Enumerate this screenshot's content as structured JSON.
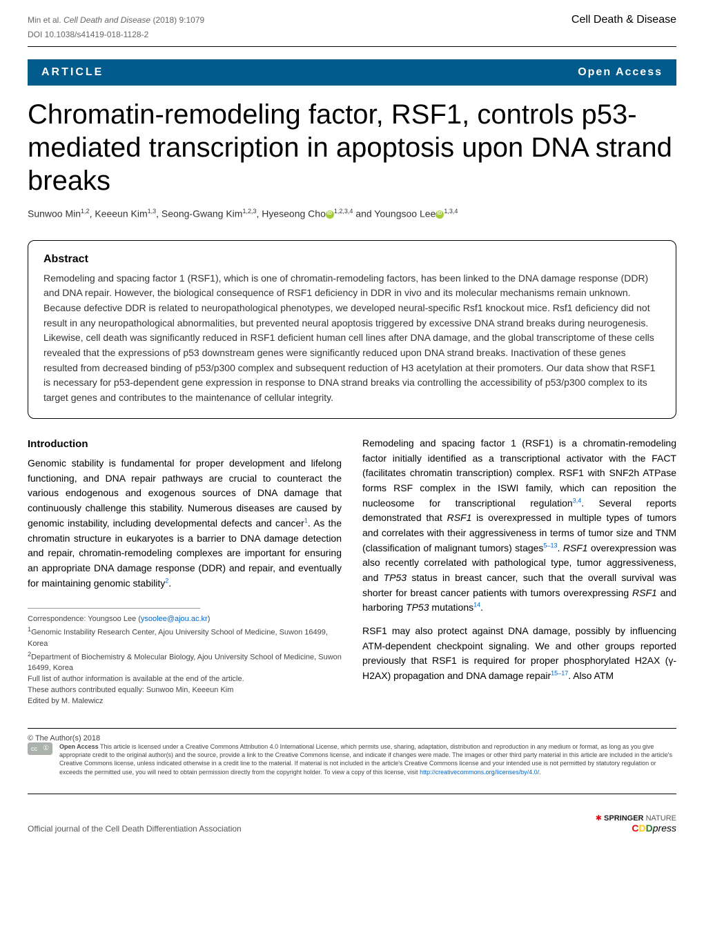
{
  "header": {
    "citation_prefix": "Min et al. ",
    "journal_italic": "Cell Death and Disease",
    "citation_suffix": "    (2018) 9:1079",
    "doi": "DOI 10.1038/s41419-018-1128-2",
    "journal_right": "Cell Death & Disease"
  },
  "article_bar": {
    "left": "ARTICLE",
    "right": "Open Access"
  },
  "title": "Chromatin-remodeling factor, RSF1, controls p53-mediated transcription in apoptosis upon DNA strand breaks",
  "authors": {
    "a1_name": "Sunwoo Min",
    "a1_aff": "1,2",
    "a2_name": "Keeeun Kim",
    "a2_aff": "1,3",
    "a3_name": "Seong-Gwang Kim",
    "a3_aff": "1,2,3",
    "a4_name": "Hyeseong Cho",
    "a4_aff": "1,2,3,4",
    "and": " and ",
    "a5_name": "Youngsoo Lee",
    "a5_aff": "1,3,4"
  },
  "abstract": {
    "heading": "Abstract",
    "text": "Remodeling and spacing factor 1 (RSF1), which is one of chromatin-remodeling factors, has been linked to the DNA damage response (DDR) and DNA repair. However, the biological consequence of RSF1 deficiency in DDR in vivo and its molecular mechanisms remain unknown. Because defective DDR is related to neuropathological phenotypes, we developed neural-specific Rsf1 knockout mice. Rsf1 deficiency did not result in any neuropathological abnormalities, but prevented neural apoptosis triggered by excessive DNA strand breaks during neurogenesis. Likewise, cell death was significantly reduced in RSF1 deficient human cell lines after DNA damage, and the global transcriptome of these cells revealed that the expressions of p53 downstream genes were significantly reduced upon DNA strand breaks. Inactivation of these genes resulted from decreased binding of p53/p300 complex and subsequent reduction of H3 acetylation at their promoters. Our data show that RSF1 is necessary for p53-dependent gene expression in response to DNA strand breaks via controlling the accessibility of p53/p300 complex to its target genes and contributes to the maintenance of cellular integrity."
  },
  "introduction": {
    "heading": "Introduction",
    "p1_a": "Genomic stability is fundamental for proper development and lifelong functioning, and DNA repair pathways are crucial to counteract the various endogenous and exogenous sources of DNA damage that continuously challenge this stability. Numerous diseases are caused by genomic instability, including developmental defects and cancer",
    "p1_ref1": "1",
    "p1_b": ". As the chromatin structure in eukaryotes is a barrier to DNA damage detection and repair, chromatin-remodeling complexes are important for ensuring an appropriate DNA damage response (DDR) and repair, and eventually for maintaining genomic stability",
    "p1_ref2": "2",
    "p1_c": "."
  },
  "col2": {
    "p1_a": "Remodeling and spacing factor 1 (RSF1) is a chromatin-remodeling factor initially identified as a transcriptional activator with the FACT (facilitates chromatin transcription) complex. RSF1 with SNF2h ATPase forms RSF complex in the ISWI family, which can reposition the nucleosome for transcriptional regulation",
    "p1_ref1": "3,4",
    "p1_b": ". Several reports demonstrated that ",
    "p1_ital1": "RSF1",
    "p1_c": " is overexpressed in multiple types of tumors and correlates with their aggressiveness in terms of tumor size and TNM (classification of malignant tumors) stages",
    "p1_ref2": "5–13",
    "p1_d": ". ",
    "p1_ital2": "RSF1",
    "p1_e": " overexpression was also recently correlated with pathological type, tumor aggressiveness, and ",
    "p1_ital3": "TP53",
    "p1_f": " status in breast cancer, such that the overall survival was shorter for breast cancer patients with tumors overexpressing ",
    "p1_ital4": "RSF1",
    "p1_g": " and harboring ",
    "p1_ital5": "TP53",
    "p1_h": " mutations",
    "p1_ref3": "14",
    "p1_i": ".",
    "p2_a": "RSF1 may also protect against DNA damage, possibly by influencing ATM-dependent checkpoint signaling. We and other groups reported previously that RSF1 is required for proper phosphorylated H2AX (γ-H2AX) propagation and DNA damage repair",
    "p2_ref1": "15–17",
    "p2_b": ". Also ATM"
  },
  "footnotes": {
    "corr_label": "Correspondence: Youngsoo Lee (",
    "corr_email": "ysoolee@ajou.ac.kr",
    "corr_close": ")",
    "aff1": "Genomic Instability Research Center, Ajou University School of Medicine, Suwon 16499, Korea",
    "aff2": "Department of Biochemistry & Molecular Biology, Ajou University School of Medicine, Suwon 16499, Korea",
    "full_list": "Full list of author information is available at the end of the article.",
    "equal": "These authors contributed equally: Sunwoo Min, Keeeun Kim",
    "edited": "Edited by M. Malewicz"
  },
  "license": {
    "copyright": "© The Author(s) 2018",
    "cc_left": "cc",
    "cc_right": "①",
    "bold_lead": "Open Access",
    "text_a": " This article is licensed under a Creative Commons Attribution 4.0 International License, which permits use, sharing, adaptation, distribution and reproduction in any medium or format, as long as you give appropriate credit to the original author(s) and the source, provide a link to the Creative Commons license, and indicate if changes were made. The images or other third party material in this article are included in the article's Creative Commons license, unless indicated otherwise in a credit line to the material. If material is not included in the article's Creative Commons license and your intended use is not permitted by statutory regulation or exceeds the permitted use, you will need to obtain permission directly from the copyright holder. To view a copy of this license, visit ",
    "link": "http://creativecommons.org/licenses/by/4.0/",
    "text_b": "."
  },
  "footer": {
    "left": "Official journal of the Cell Death Differentiation Association",
    "springer_a": "SPRINGER",
    "springer_b": "NATURE",
    "cdd_c": "C",
    "cdd_d": "D",
    "cdd_d2": "D",
    "cdd_press": "press"
  },
  "colors": {
    "bar_bg": "#005a8c",
    "link": "#0066cc",
    "orcid": "#a6ce39"
  }
}
